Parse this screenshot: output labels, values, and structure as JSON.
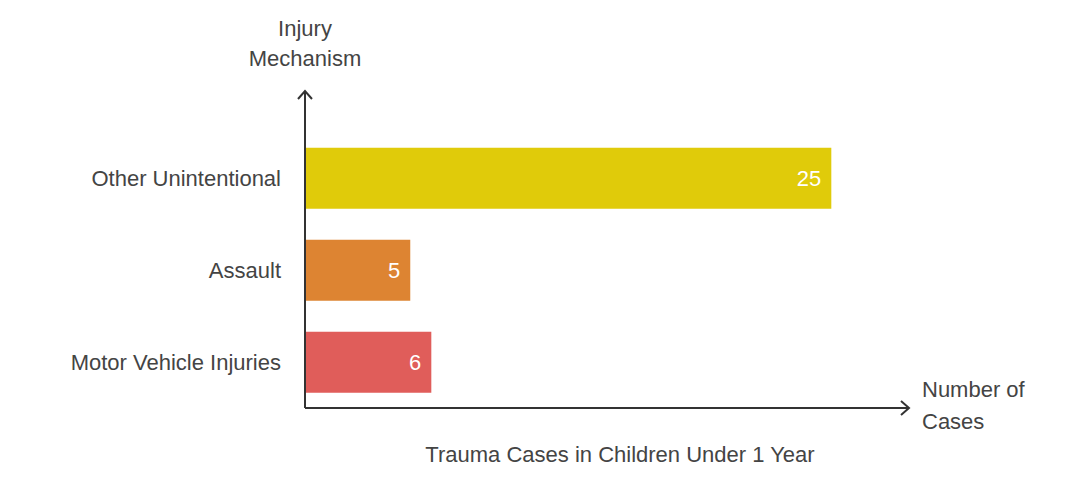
{
  "chart_data": {
    "type": "bar",
    "title": "Trauma Cases in Children Under 1 Year",
    "xlabel": "Number of Cases",
    "ylabel": "Injury Mechanism",
    "orientation": "horizontal",
    "categories": [
      "Other Unintentional",
      "Assault",
      "Motor Vehicle Injuries"
    ],
    "values": [
      25,
      5,
      6
    ],
    "colors": [
      "#e0cb0a",
      "#dd8432",
      "#e05d5a"
    ],
    "xlim": [
      0,
      28.5
    ],
    "data_labels": true,
    "tick_labels": "y",
    "grid": false
  }
}
